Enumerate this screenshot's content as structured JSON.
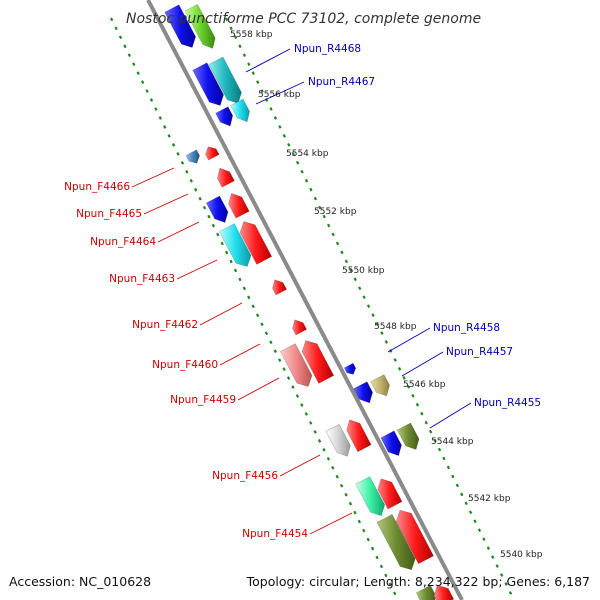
{
  "title": "Nostoc punctiforme PCC 73102, complete genome",
  "accession": "Accession: NC_010628",
  "topology": "Topology: circular; Length: 8,234,322 bp; Genes: 6,187",
  "colors": {
    "forward_label": "#cc0000",
    "reverse_label": "#0000aa",
    "tick": "#1a8a1a",
    "backbone": "#8a8a8a"
  },
  "ticks": [
    "5558 kbp",
    "5556 kbp",
    "5554 kbp",
    "5552 kbp",
    "5550 kbp",
    "5548 kbp",
    "5546 kbp",
    "5544 kbp",
    "5542 kbp",
    "5540 kbp"
  ],
  "reverse_labels": [
    "Npun_R4468",
    "Npun_R4467",
    "Npun_R4458",
    "Npun_R4457",
    "Npun_R4455"
  ],
  "forward_labels": [
    "Npun_F4466",
    "Npun_F4465",
    "Npun_F4464",
    "Npun_F4463",
    "Npun_F4462",
    "Npun_F4460",
    "Npun_F4459",
    "Npun_F4456",
    "Npun_F4454"
  ]
}
